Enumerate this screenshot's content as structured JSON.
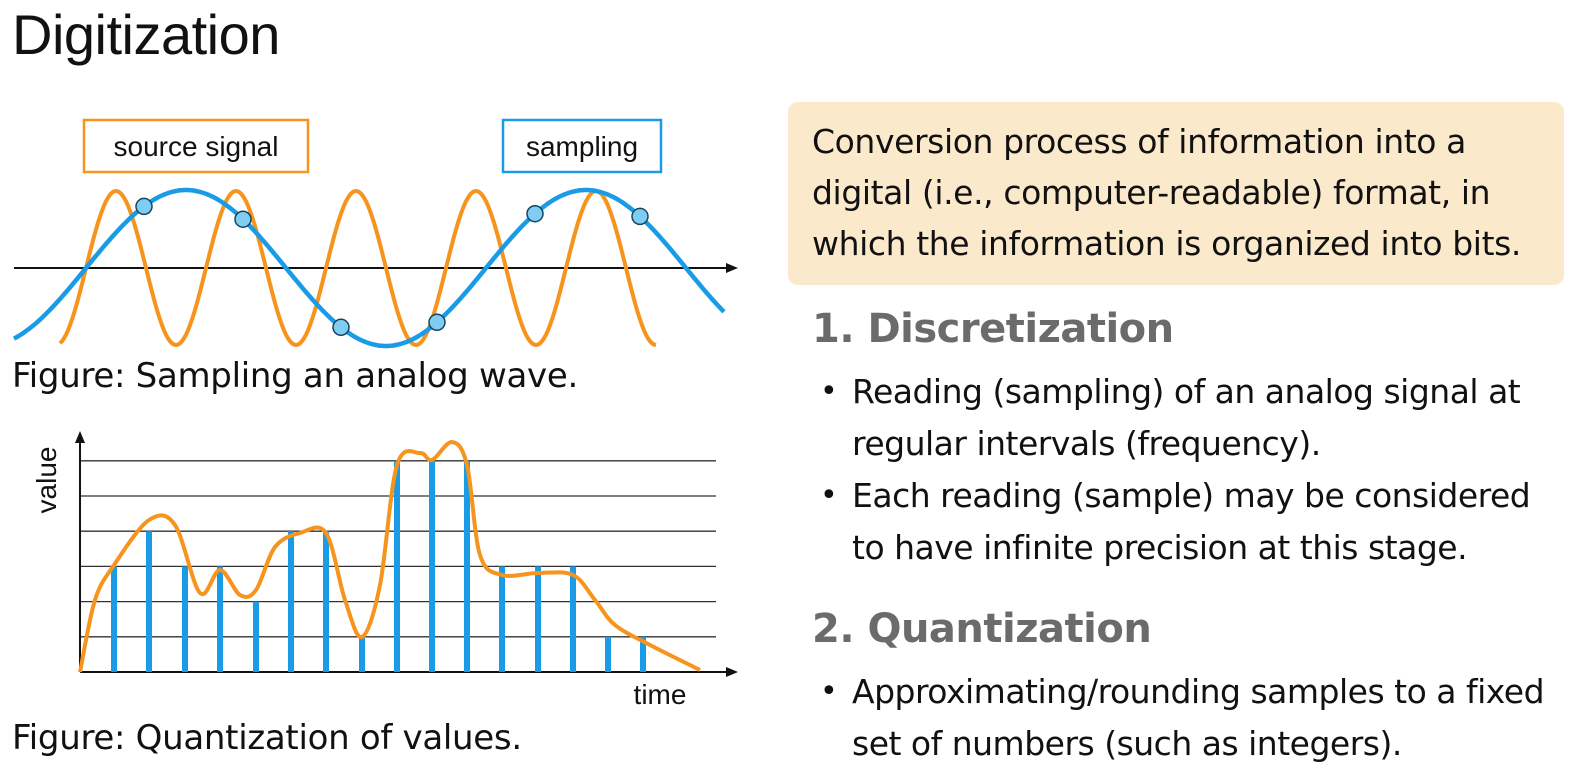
{
  "page": {
    "title": "Digitization"
  },
  "figure_sampling": {
    "source_label": "source signal",
    "sampling_label": "sampling",
    "caption": "Figure: Sampling an analog wave.",
    "colors": {
      "source": "#f7941d",
      "sampling": "#1a9be6",
      "axis": "#111111",
      "dot_fill": "#7fcdf2"
    }
  },
  "figure_quantization": {
    "y_label": "value",
    "x_label": "time",
    "caption": "Figure: Quantization of values.",
    "levels": 6,
    "quantized_values": [
      3,
      4,
      3,
      3,
      2,
      4,
      4,
      1,
      6,
      6,
      6,
      3,
      3,
      3,
      1,
      1
    ],
    "colors": {
      "curve": "#f7941d",
      "bars": "#1a9be6",
      "grid": "#333333"
    }
  },
  "definition": {
    "text": "Conversion process of information into a digital (i.e., computer-readable) format, in which the information is organized into bits.",
    "background": "#fbe9cc"
  },
  "sections": [
    {
      "heading": "1. Discretization",
      "bullets": [
        "Reading (sampling) of an analog signal at regular intervals (frequency).",
        "Each reading (sample) may be considered to have infinite precision at this stage."
      ]
    },
    {
      "heading": "2. Quantization",
      "bullets": [
        "Approximating/rounding samples to a fixed set of numbers (such as integers)."
      ]
    }
  ]
}
